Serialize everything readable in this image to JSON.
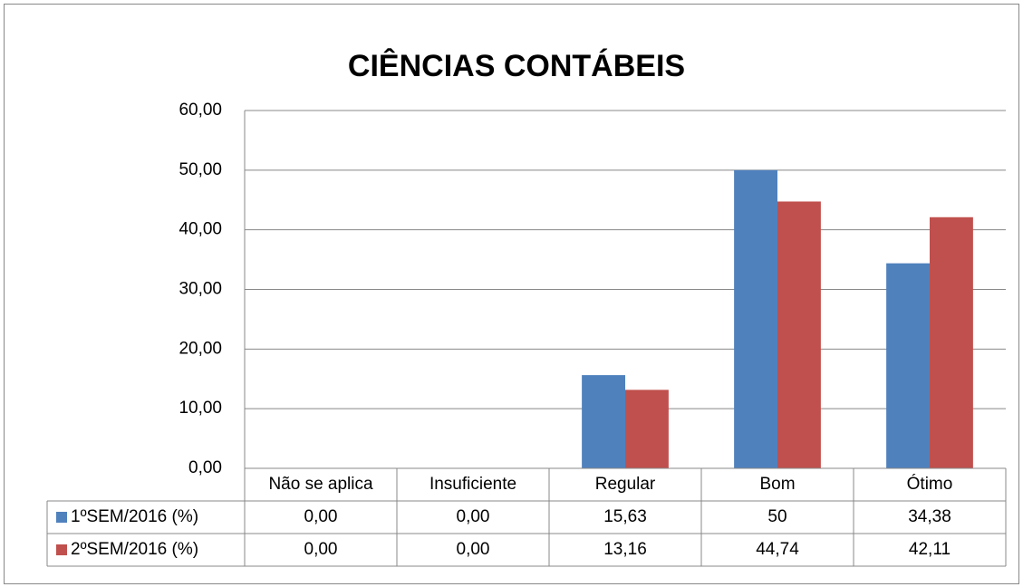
{
  "chart_data": {
    "type": "bar",
    "title": "CIÊNCIAS CONTÁBEIS",
    "categories": [
      "Não se aplica",
      "Insuficiente",
      "Regular",
      "Bom",
      "Ótimo"
    ],
    "series": [
      {
        "name": "1ºSEM/2016 (%)",
        "color": "#4f81bd",
        "values": [
          0,
          0,
          15.63,
          50,
          34.38
        ],
        "value_labels": [
          "0,00",
          "0,00",
          "15,63",
          "50",
          "34,38"
        ]
      },
      {
        "name": "2ºSEM/2016 (%)",
        "color": "#c0504d",
        "values": [
          0,
          0,
          13.16,
          44.74,
          42.11
        ],
        "value_labels": [
          "0,00",
          "0,00",
          "13,16",
          "44,74",
          "42,11"
        ]
      }
    ],
    "ylim": [
      0,
      60
    ],
    "yticks": [
      {
        "value": 0,
        "label": "0,00"
      },
      {
        "value": 10,
        "label": "10,00"
      },
      {
        "value": 20,
        "label": "20,00"
      },
      {
        "value": 30,
        "label": "30,00"
      },
      {
        "value": 40,
        "label": "40,00"
      },
      {
        "value": 50,
        "label": "50,00"
      },
      {
        "value": 60,
        "label": "60,00"
      }
    ],
    "grid": true,
    "legend": "data-table"
  }
}
